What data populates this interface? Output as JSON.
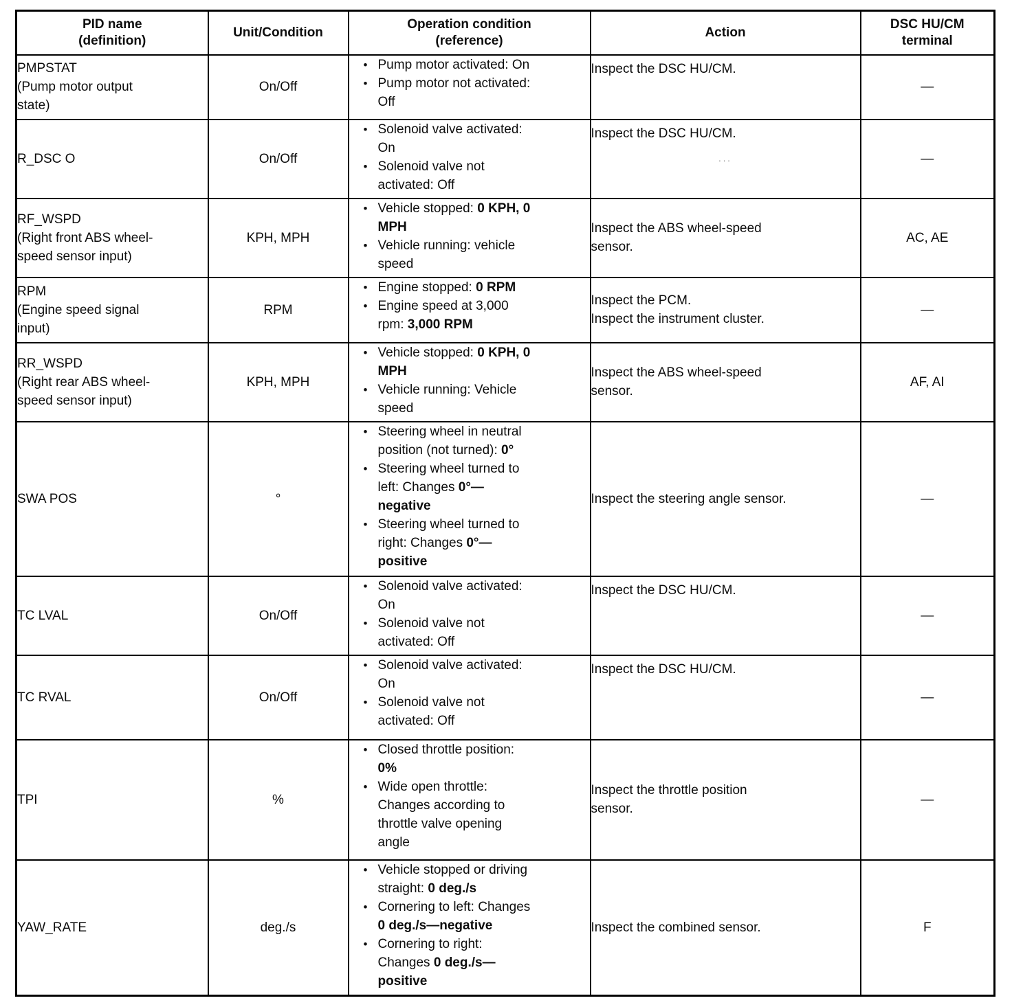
{
  "table": {
    "headers": [
      {
        "lines": [
          "PID name",
          "(definition)"
        ]
      },
      {
        "lines": [
          "Unit/Condition"
        ]
      },
      {
        "lines": [
          "Operation condition",
          "(reference)"
        ]
      },
      {
        "lines": [
          "Action"
        ]
      },
      {
        "lines": [
          "DSC HU/CM",
          "terminal"
        ]
      }
    ],
    "rows": [
      {
        "pid_lines": [
          "PMPSTAT",
          "(Pump motor output",
          "state)"
        ],
        "unit": "On/Off",
        "conditions": [
          [
            "Pump motor activated: On"
          ],
          [
            "Pump motor not activated:",
            "Off"
          ]
        ],
        "action_lines": [
          "Inspect the DSC HU/CM."
        ],
        "terminal": "—"
      },
      {
        "pid_lines": [
          "R_DSC O"
        ],
        "unit": "On/Off",
        "conditions": [
          [
            "Solenoid valve activated:",
            "On"
          ],
          [
            "Solenoid valve not",
            "activated: Off"
          ]
        ],
        "action_lines": [
          "Inspect the DSC HU/CM."
        ],
        "action_note": "...",
        "terminal": "—"
      },
      {
        "pid_lines": [
          "RF_WSPD",
          "(Right front ABS wheel-",
          "speed sensor input)"
        ],
        "unit": "KPH, MPH",
        "conditions": [
          [
            [
              {
                "t": "Vehicle stopped: "
              },
              {
                "t": "0 KPH, 0",
                "b": true
              }
            ],
            [
              {
                "t": "MPH",
                "b": true
              }
            ]
          ],
          [
            "Vehicle running: vehicle",
            "speed"
          ]
        ],
        "action_lines": [
          "Inspect the ABS wheel-speed",
          "sensor."
        ],
        "terminal": "AC, AE"
      },
      {
        "pid_lines": [
          "RPM",
          "(Engine speed signal",
          "input)"
        ],
        "unit": "RPM",
        "conditions": [
          [
            [
              {
                "t": "Engine stopped: "
              },
              {
                "t": "0 RPM",
                "b": true
              }
            ]
          ],
          [
            "Engine speed at 3,000",
            [
              {
                "t": "rpm: "
              },
              {
                "t": "3,000 RPM",
                "b": true
              }
            ]
          ]
        ],
        "action_lines": [
          "Inspect the PCM.",
          "Inspect the instrument cluster."
        ],
        "terminal": "—"
      },
      {
        "pid_lines": [
          "RR_WSPD",
          "(Right rear ABS wheel-",
          "speed sensor input)"
        ],
        "unit": "KPH, MPH",
        "conditions": [
          [
            [
              {
                "t": "Vehicle stopped: "
              },
              {
                "t": "0 KPH, 0",
                "b": true
              }
            ],
            [
              {
                "t": "MPH",
                "b": true
              }
            ]
          ],
          [
            "Vehicle running: Vehicle",
            "speed"
          ]
        ],
        "action_lines": [
          "Inspect the ABS wheel-speed",
          "sensor."
        ],
        "terminal": "AF, AI"
      },
      {
        "pid_lines": [
          "SWA POS"
        ],
        "unit": "°",
        "conditions": [
          [
            "Steering wheel in neutral",
            [
              {
                "t": "position (not turned): "
              },
              {
                "t": "0°",
                "b": true
              }
            ]
          ],
          [
            "Steering wheel turned to",
            [
              {
                "t": "left: Changes "
              },
              {
                "t": "0°—",
                "b": true
              }
            ],
            [
              {
                "t": "negative",
                "b": true
              }
            ]
          ],
          [
            "Steering wheel turned to",
            [
              {
                "t": "right: Changes "
              },
              {
                "t": "0°—",
                "b": true
              }
            ],
            [
              {
                "t": "positive",
                "b": true
              }
            ]
          ]
        ],
        "action_lines": [
          "Inspect the steering angle sensor."
        ],
        "terminal": "—"
      },
      {
        "pid_lines": [
          "TC LVAL"
        ],
        "unit": "On/Off",
        "conditions": [
          [
            "Solenoid valve activated:",
            "On"
          ],
          [
            "Solenoid valve not",
            "activated: Off"
          ]
        ],
        "action_lines": [
          "Inspect the DSC HU/CM."
        ],
        "terminal": "—"
      },
      {
        "pid_lines": [
          "TC RVAL"
        ],
        "unit": "On/Off",
        "conditions": [
          [
            "Solenoid valve activated:",
            "On"
          ],
          [
            "Solenoid valve not",
            "activated: Off"
          ]
        ],
        "action_lines": [
          "Inspect the DSC HU/CM."
        ],
        "terminal": "—"
      },
      {
        "pid_lines": [
          "TPI"
        ],
        "unit": "%",
        "conditions": [
          [
            "Closed throttle position:",
            [
              {
                "t": "0%",
                "b": true
              }
            ]
          ],
          [
            "Wide open throttle:",
            "Changes according to",
            "throttle valve opening",
            "angle"
          ]
        ],
        "action_lines": [
          "Inspect the throttle position",
          "sensor."
        ],
        "terminal": "—"
      },
      {
        "pid_lines": [
          "YAW_RATE"
        ],
        "unit": "deg./s",
        "conditions": [
          [
            "Vehicle stopped or driving",
            [
              {
                "t": "straight: "
              },
              {
                "t": "0 deg./s",
                "b": true
              }
            ]
          ],
          [
            "Cornering to left: Changes",
            [
              {
                "t": "0 deg./s—negative",
                "b": true
              }
            ]
          ],
          [
            "Cornering to right:",
            [
              {
                "t": "Changes "
              },
              {
                "t": "0 deg./s—",
                "b": true
              }
            ],
            [
              {
                "t": "positive",
                "b": true
              }
            ]
          ]
        ],
        "action_lines": [
          "Inspect the combined sensor."
        ],
        "terminal": "F"
      }
    ]
  }
}
